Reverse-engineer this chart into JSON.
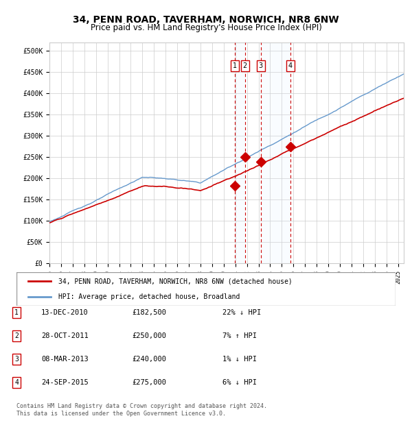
{
  "title": "34, PENN ROAD, TAVERHAM, NORWICH, NR8 6NW",
  "subtitle": "Price paid vs. HM Land Registry's House Price Index (HPI)",
  "ylabel": "",
  "xlim_start": 1995.0,
  "xlim_end": 2025.5,
  "ylim": [
    0,
    520000
  ],
  "yticks": [
    0,
    50000,
    100000,
    150000,
    200000,
    250000,
    300000,
    350000,
    400000,
    450000,
    500000
  ],
  "ytick_labels": [
    "£0",
    "£50K",
    "£100K",
    "£150K",
    "£200K",
    "£250K",
    "£300K",
    "£350K",
    "£400K",
    "£450K",
    "£500K"
  ],
  "sale_dates": [
    2010.95,
    2011.83,
    2013.18,
    2015.73
  ],
  "sale_prices": [
    182500,
    250000,
    240000,
    275000
  ],
  "sale_labels": [
    "1",
    "2",
    "3",
    "4"
  ],
  "red_line_color": "#cc0000",
  "blue_line_color": "#6699cc",
  "marker_color": "#cc0000",
  "vline_color": "#cc0000",
  "shade_color": "#ddeeff",
  "legend_red_label": "34, PENN ROAD, TAVERHAM, NORWICH, NR8 6NW (detached house)",
  "legend_blue_label": "HPI: Average price, detached house, Broadland",
  "table_data": [
    [
      "1",
      "13-DEC-2010",
      "£182,500",
      "22% ↓ HPI"
    ],
    [
      "2",
      "28-OCT-2011",
      "£250,000",
      "7% ↑ HPI"
    ],
    [
      "3",
      "08-MAR-2013",
      "£240,000",
      "1% ↓ HPI"
    ],
    [
      "4",
      "24-SEP-2015",
      "£275,000",
      "6% ↓ HPI"
    ]
  ],
  "footnote": "Contains HM Land Registry data © Crown copyright and database right 2024.\nThis data is licensed under the Open Government Licence v3.0.",
  "background_color": "#ffffff",
  "grid_color": "#cccccc"
}
